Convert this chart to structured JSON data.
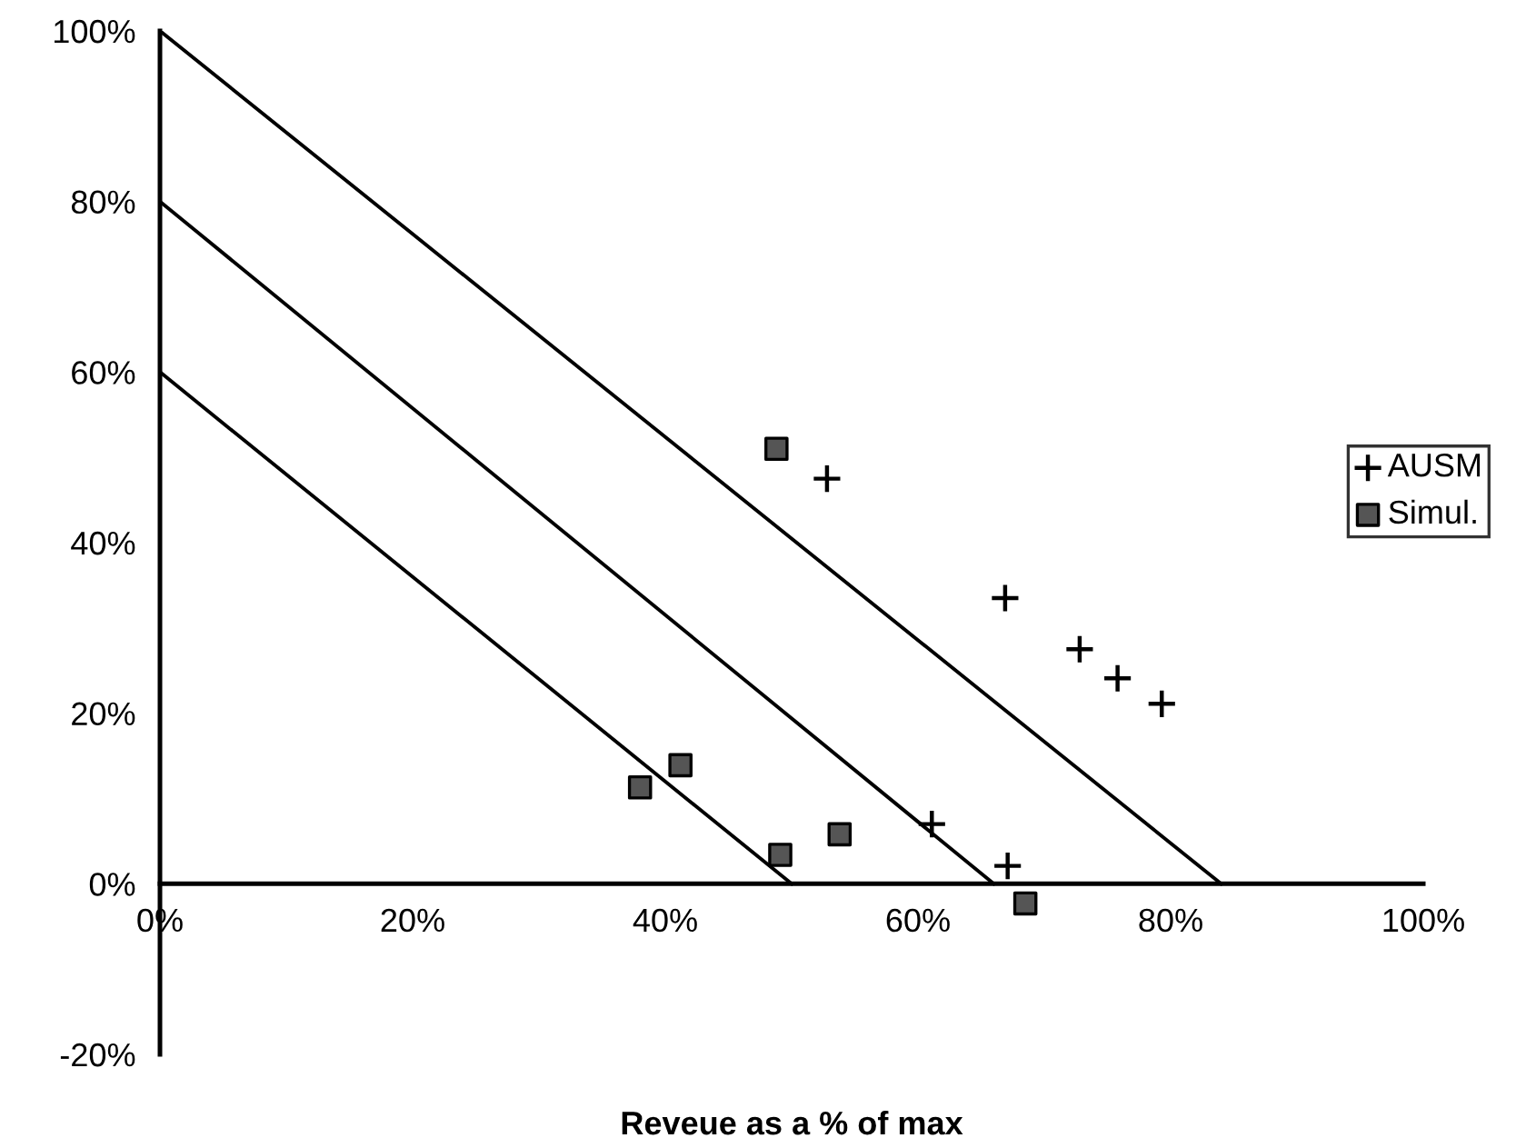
{
  "chart_data": {
    "type": "scatter",
    "xlabel": "Reveue as a % of max",
    "xlim": [
      0,
      100
    ],
    "ylim": [
      -20,
      100
    ],
    "xticks": [
      {
        "value": 0,
        "label": "0%"
      },
      {
        "value": 20,
        "label": "20%"
      },
      {
        "value": 40,
        "label": "40%"
      },
      {
        "value": 60,
        "label": "60%"
      },
      {
        "value": 80,
        "label": "80%"
      },
      {
        "value": 100,
        "label": "100%"
      }
    ],
    "yticks": [
      {
        "value": -20,
        "label": "-20%"
      },
      {
        "value": 0,
        "label": "0%"
      },
      {
        "value": 20,
        "label": "20%"
      },
      {
        "value": 40,
        "label": "40%"
      },
      {
        "value": 60,
        "label": "60%"
      },
      {
        "value": 80,
        "label": "80%"
      },
      {
        "value": 100,
        "label": "100%"
      }
    ],
    "grid": false,
    "legend": "right",
    "series": [
      {
        "name": "AUSM",
        "marker": "cross",
        "color": "#000000",
        "x": [
          52.8,
          66.9,
          72.8,
          75.8,
          79.3,
          61.1,
          67.1
        ],
        "values": [
          47.5,
          33.5,
          27.5,
          24.1,
          21.1,
          7.0,
          2.1
        ]
      },
      {
        "name": "Simul.",
        "marker": "square",
        "color": "#555555",
        "x": [
          48.8,
          41.2,
          38.0,
          49.1,
          53.8,
          68.5
        ],
        "values": [
          51.0,
          13.9,
          11.3,
          3.4,
          5.8,
          -2.3
        ]
      },
      {
        "type": "line",
        "color": "#000000",
        "x": [
          0,
          84
        ],
        "values": [
          100,
          0
        ]
      },
      {
        "type": "line",
        "color": "#000000",
        "x": [
          0,
          66
        ],
        "values": [
          80,
          0
        ]
      },
      {
        "type": "line",
        "color": "#000000",
        "x": [
          0,
          50
        ],
        "values": [
          60,
          0
        ]
      }
    ]
  }
}
